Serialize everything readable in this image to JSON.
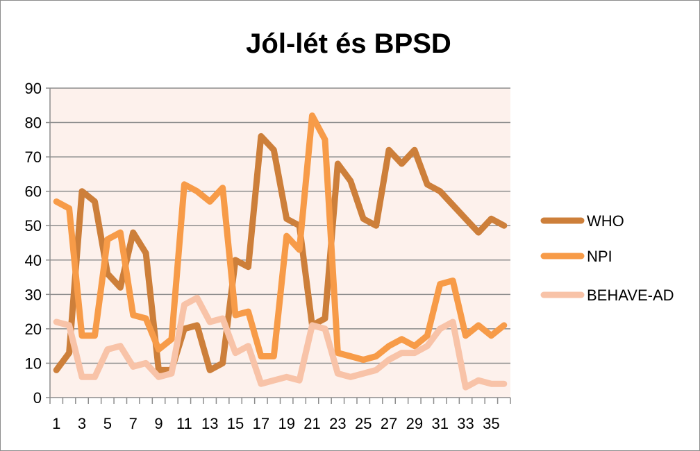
{
  "chart_data": {
    "type": "line",
    "title": "Jól-lét és BPSD",
    "xlabel": "",
    "ylabel": "",
    "ylim": [
      0,
      90
    ],
    "yticks": [
      "0",
      "10",
      "20",
      "30",
      "40",
      "50",
      "60",
      "70",
      "80",
      "90"
    ],
    "x": [
      1,
      2,
      3,
      4,
      5,
      6,
      7,
      8,
      9,
      10,
      11,
      12,
      13,
      14,
      15,
      16,
      17,
      18,
      19,
      20,
      21,
      22,
      23,
      24,
      25,
      26,
      27,
      28,
      29,
      30,
      31,
      32,
      33,
      34,
      35,
      36
    ],
    "xtick_labels": [
      "1",
      "3",
      "5",
      "7",
      "9",
      "11",
      "13",
      "15",
      "17",
      "19",
      "21",
      "23",
      "25",
      "27",
      "29",
      "31",
      "33",
      "35"
    ],
    "grid": true,
    "legend_position": "right",
    "series": [
      {
        "name": "WHO",
        "color": "#cd7f3a",
        "values": [
          8,
          13,
          60,
          57,
          36,
          32,
          48,
          42,
          8,
          8,
          20,
          21,
          8,
          10,
          40,
          38,
          76,
          72,
          52,
          50,
          21,
          23,
          68,
          63,
          52,
          50,
          72,
          68,
          72,
          62,
          60,
          56,
          52,
          48,
          52,
          50
        ]
      },
      {
        "name": "NPI",
        "color": "#f79b48",
        "values": [
          57,
          55,
          18,
          18,
          46,
          48,
          24,
          23,
          14,
          17,
          62,
          60,
          57,
          61,
          24,
          25,
          12,
          12,
          47,
          43,
          82,
          75,
          13,
          12,
          11,
          12,
          15,
          17,
          15,
          18,
          33,
          34,
          18,
          21,
          18,
          21
        ]
      },
      {
        "name": "BEHAVE-AD",
        "color": "#f8c3a8",
        "values": [
          22,
          21,
          6,
          6,
          14,
          15,
          9,
          10,
          6,
          7,
          27,
          29,
          22,
          23,
          13,
          15,
          4,
          5,
          6,
          5,
          21,
          20,
          7,
          6,
          7,
          8,
          11,
          13,
          13,
          15,
          20,
          22,
          3,
          5,
          4,
          4
        ]
      }
    ]
  }
}
